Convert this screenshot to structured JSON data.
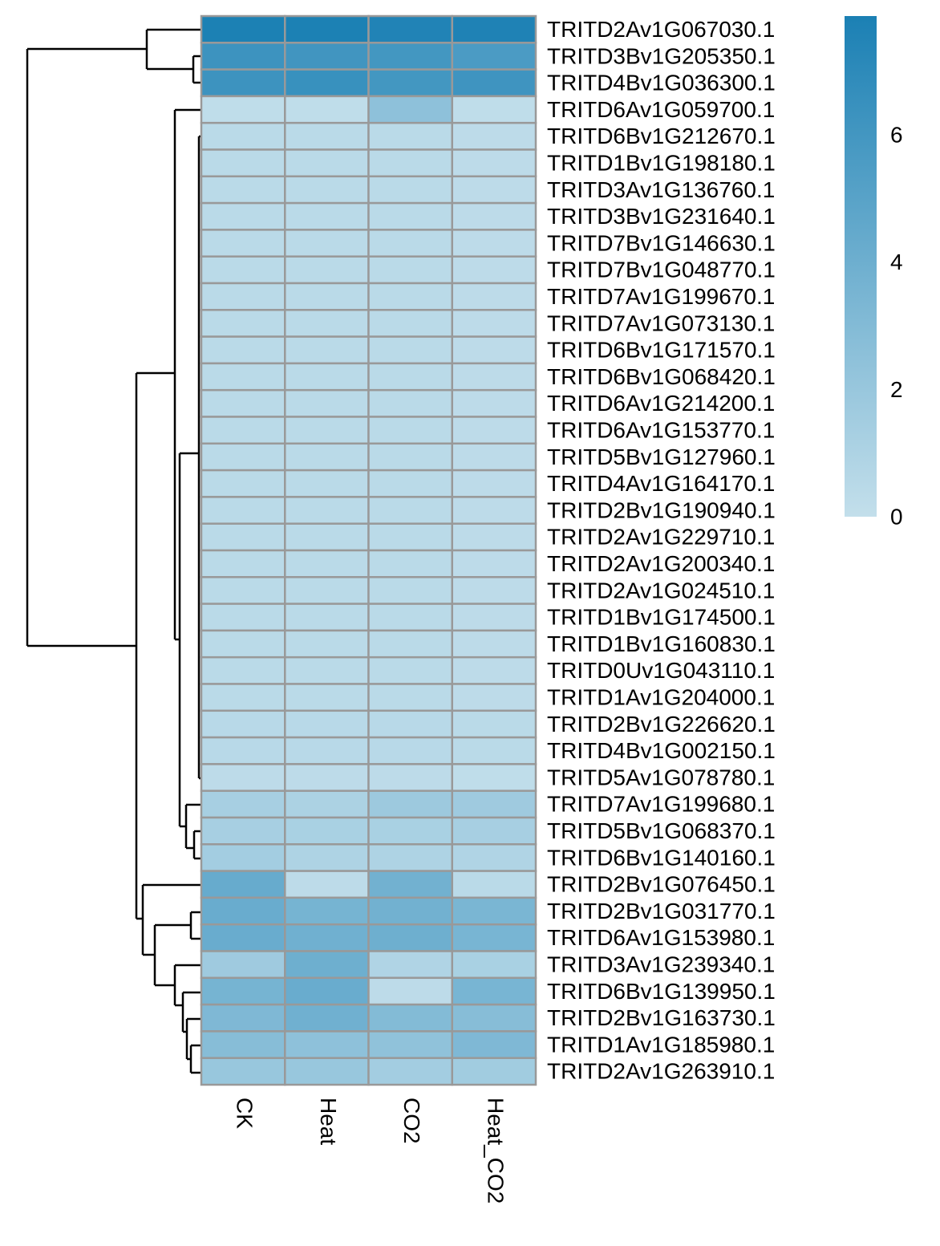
{
  "chart_data": {
    "type": "heatmap",
    "rows": [
      "TRITD2Av1G067030.1",
      "TRITD3Bv1G205350.1",
      "TRITD4Bv1G036300.1",
      "TRITD6Av1G059700.1",
      "TRITD6Bv1G212670.1",
      "TRITD1Bv1G198180.1",
      "TRITD3Av1G136760.1",
      "TRITD3Bv1G231640.1",
      "TRITD7Bv1G146630.1",
      "TRITD7Bv1G048770.1",
      "TRITD7Av1G199670.1",
      "TRITD7Av1G073130.1",
      "TRITD6Bv1G171570.1",
      "TRITD6Bv1G068420.1",
      "TRITD6Av1G214200.1",
      "TRITD6Av1G153770.1",
      "TRITD5Bv1G127960.1",
      "TRITD4Av1G164170.1",
      "TRITD2Bv1G190940.1",
      "TRITD2Av1G229710.1",
      "TRITD2Av1G200340.1",
      "TRITD2Av1G024510.1",
      "TRITD1Bv1G174500.1",
      "TRITD1Bv1G160830.1",
      "TRITD0Uv1G043110.1",
      "TRITD1Av1G204000.1",
      "TRITD2Bv1G226620.1",
      "TRITD4Bv1G002150.1",
      "TRITD5Av1G078780.1",
      "TRITD7Av1G199680.1",
      "TRITD5Bv1G068370.1",
      "TRITD6Bv1G140160.1",
      "TRITD2Bv1G076450.1",
      "TRITD2Bv1G031770.1",
      "TRITD6Av1G153980.1",
      "TRITD3Av1G239340.1",
      "TRITD6Bv1G139950.1",
      "TRITD2Bv1G163730.1",
      "TRITD1Av1G185980.1",
      "TRITD2Av1G263910.1"
    ],
    "columns": [
      "CK",
      "Heat",
      "CO2",
      "Heat_CO2"
    ],
    "values": [
      [
        7.8,
        7.8,
        7.6,
        7.7
      ],
      [
        6.3,
        6.1,
        6.0,
        5.6
      ],
      [
        6.3,
        6.5,
        6.0,
        6.2
      ],
      [
        0.2,
        0.2,
        2.5,
        0.2
      ],
      [
        0.4,
        0.4,
        0.4,
        0.3
      ],
      [
        0.4,
        0.4,
        0.4,
        0.3
      ],
      [
        0.4,
        0.4,
        0.4,
        0.3
      ],
      [
        0.4,
        0.4,
        0.4,
        0.3
      ],
      [
        0.4,
        0.4,
        0.4,
        0.3
      ],
      [
        0.4,
        0.4,
        0.4,
        0.3
      ],
      [
        0.4,
        0.4,
        0.4,
        0.3
      ],
      [
        0.4,
        0.4,
        0.4,
        0.3
      ],
      [
        0.4,
        0.4,
        0.4,
        0.3
      ],
      [
        0.4,
        0.4,
        0.4,
        0.3
      ],
      [
        0.4,
        0.4,
        0.4,
        0.3
      ],
      [
        0.4,
        0.4,
        0.4,
        0.3
      ],
      [
        0.4,
        0.4,
        0.4,
        0.3
      ],
      [
        0.4,
        0.4,
        0.4,
        0.3
      ],
      [
        0.4,
        0.4,
        0.4,
        0.3
      ],
      [
        0.4,
        0.4,
        0.4,
        0.3
      ],
      [
        0.4,
        0.4,
        0.4,
        0.3
      ],
      [
        0.4,
        0.4,
        0.4,
        0.3
      ],
      [
        0.4,
        0.4,
        0.4,
        0.3
      ],
      [
        0.4,
        0.4,
        0.4,
        0.3
      ],
      [
        0.4,
        0.4,
        0.4,
        0.3
      ],
      [
        0.4,
        0.4,
        0.4,
        0.3
      ],
      [
        0.5,
        0.5,
        0.5,
        0.4
      ],
      [
        0.5,
        0.5,
        0.5,
        0.4
      ],
      [
        0.3,
        0.3,
        0.3,
        0.2
      ],
      [
        1.3,
        1.1,
        1.8,
        1.7
      ],
      [
        1.3,
        1.2,
        1.2,
        1.3
      ],
      [
        1.5,
        1.0,
        1.0,
        0.9
      ],
      [
        4.3,
        0.3,
        3.8,
        0.4
      ],
      [
        4.2,
        3.6,
        3.8,
        3.4
      ],
      [
        4.2,
        3.9,
        4.0,
        3.5
      ],
      [
        1.7,
        4.0,
        0.9,
        1.2
      ],
      [
        3.6,
        4.2,
        0.3,
        3.5
      ],
      [
        3.2,
        3.9,
        3.0,
        2.8
      ],
      [
        2.8,
        2.5,
        2.4,
        3.2
      ],
      [
        2.0,
        2.0,
        1.5,
        1.6
      ]
    ],
    "colors": [
      "#c3dfeb",
      "#1b80b4"
    ],
    "zlim": [
      0,
      7.87
    ],
    "zticks": [
      0,
      2,
      4,
      6
    ],
    "border_color": "#999999"
  }
}
